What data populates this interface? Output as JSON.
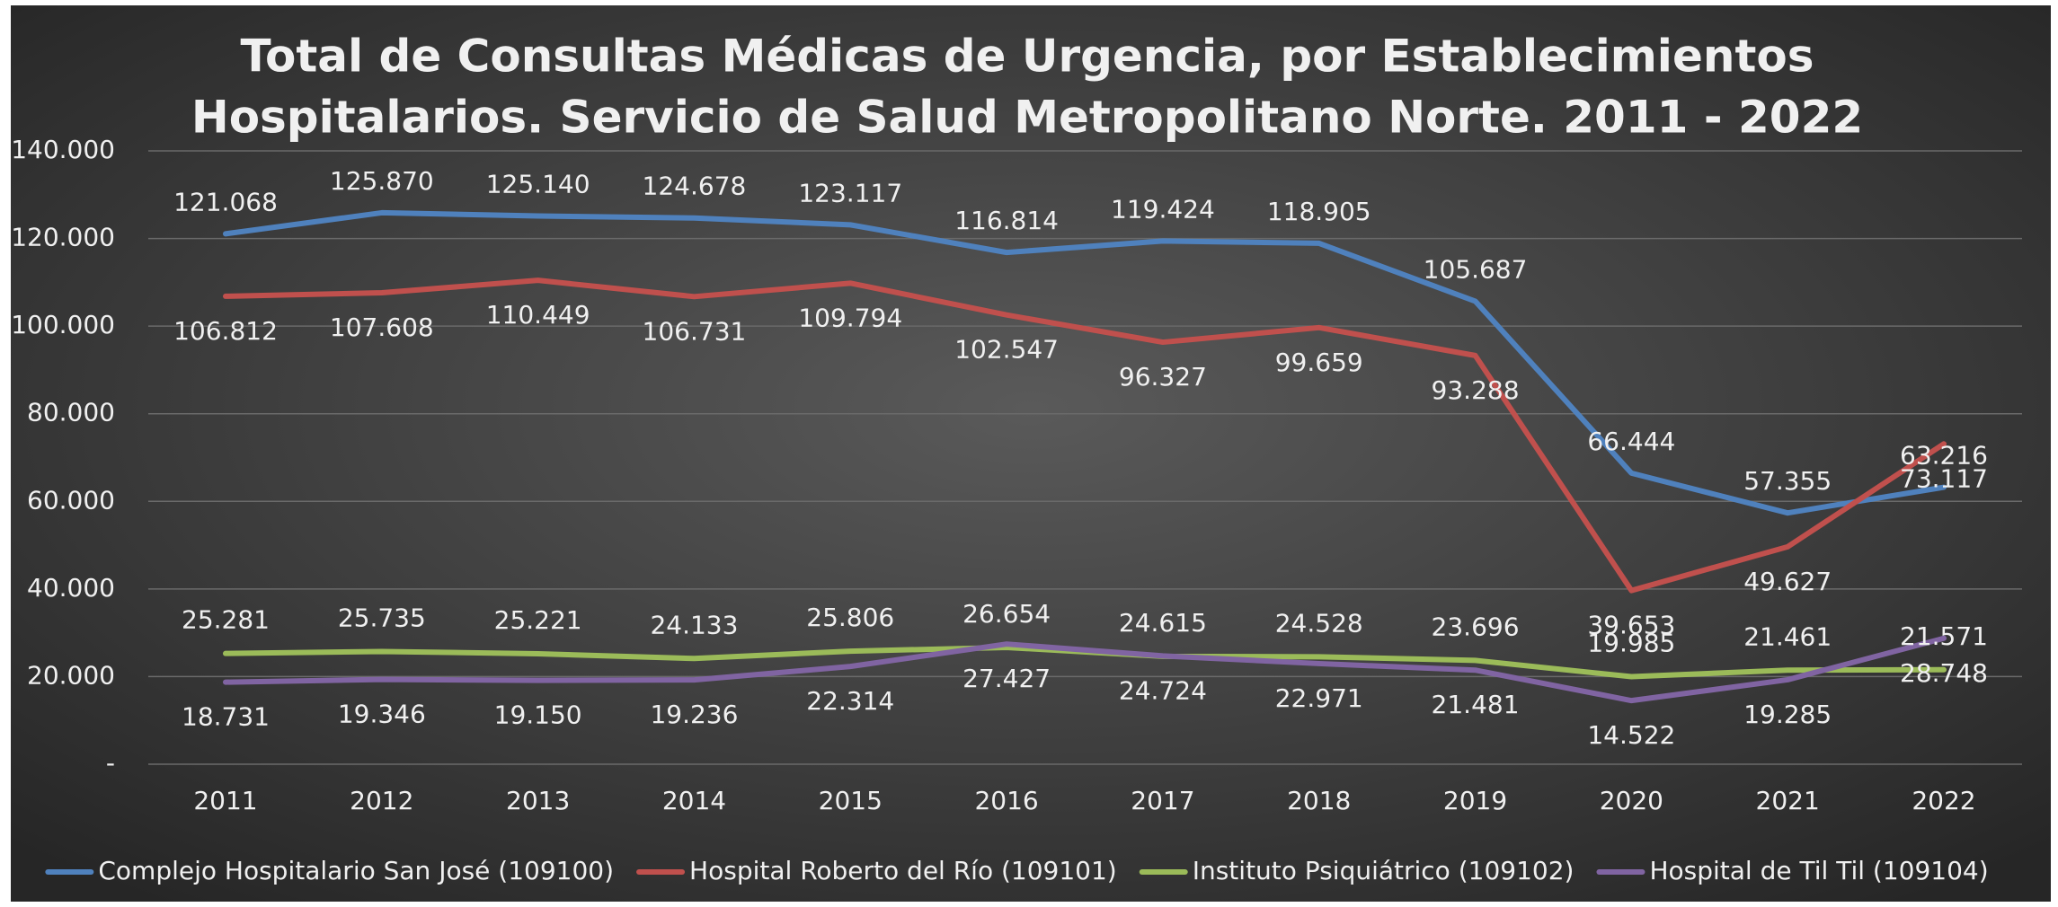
{
  "chart_data": {
    "type": "line",
    "title": [
      "Total de Consultas Médicas de Urgencia, por Establecimientos",
      "Hospitalarios. Servicio de Salud Metropolitano Norte. 2011 - 2022"
    ],
    "categories": [
      "2011",
      "2012",
      "2013",
      "2014",
      "2015",
      "2016",
      "2017",
      "2018",
      "2019",
      "2020",
      "2021",
      "2022"
    ],
    "series": [
      {
        "name": "Complejo Hospitalario San José (109100)",
        "color": "#4f81bd",
        "values": [
          121068,
          125870,
          125140,
          124678,
          123117,
          116814,
          119424,
          118905,
          105687,
          66444,
          57355,
          63216
        ],
        "value_labels": [
          "121.068",
          "125.870",
          "125.140",
          "124.678",
          "123.117",
          "116.814",
          "119.424",
          "118.905",
          "105.687",
          "66.444",
          "57.355",
          "63.216"
        ]
      },
      {
        "name": "Hospital Roberto del Río (109101)",
        "color": "#c0504d",
        "values": [
          106812,
          107608,
          110449,
          106731,
          109794,
          102547,
          96327,
          99659,
          93288,
          39653,
          49627,
          73117
        ],
        "value_labels": [
          "106.812",
          "107.608",
          "110.449",
          "106.731",
          "109.794",
          "102.547",
          "96.327",
          "99.659",
          "93.288",
          "39.653",
          "49.627",
          "73.117"
        ]
      },
      {
        "name": "Instituto Psiquiátrico (109102)",
        "color": "#9bbb59",
        "values": [
          25281,
          25735,
          25221,
          24133,
          25806,
          26654,
          24615,
          24528,
          23696,
          19985,
          21461,
          21571
        ],
        "value_labels": [
          "25.281",
          "25.735",
          "25.221",
          "24.133",
          "25.806",
          "26.654",
          "24.615",
          "24.528",
          "23.696",
          "19.985",
          "21.461",
          "21.571"
        ]
      },
      {
        "name": "Hospital de Til Til (109104)",
        "color": "#8064a2",
        "values": [
          18731,
          19346,
          19150,
          19236,
          22314,
          27427,
          24724,
          22971,
          21481,
          14522,
          19285,
          28748
        ],
        "value_labels": [
          "18.731",
          "19.346",
          "19.150",
          "19.236",
          "22.314",
          "27.427",
          "24.724",
          "22.971",
          "21.481",
          "14.522",
          "19.285",
          "28.748"
        ]
      }
    ],
    "ylim": [
      0,
      140000
    ],
    "yticks": [
      {
        "value": 0,
        "label": "-"
      },
      {
        "value": 20000,
        "label": "20.000"
      },
      {
        "value": 40000,
        "label": "40.000"
      },
      {
        "value": 60000,
        "label": "60.000"
      },
      {
        "value": 80000,
        "label": "80.000"
      },
      {
        "value": 100000,
        "label": "100.000"
      },
      {
        "value": 120000,
        "label": "120.000"
      },
      {
        "value": 140000,
        "label": "140.000"
      }
    ],
    "grid": true,
    "legend": "bottom"
  }
}
